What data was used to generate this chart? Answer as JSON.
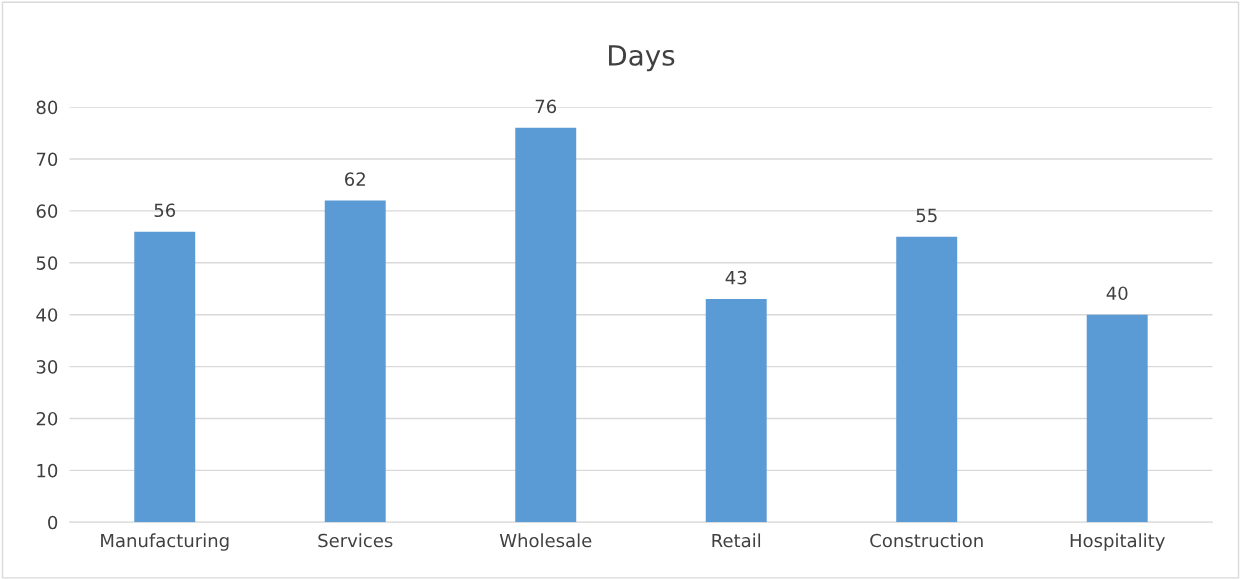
{
  "chart_data": {
    "type": "bar",
    "title": "Days",
    "categories": [
      "Manufacturing",
      "Services",
      "Wholesale",
      "Retail",
      "Construction",
      "Hospitality"
    ],
    "values": [
      56,
      62,
      76,
      43,
      55,
      40
    ],
    "color": "#5b9bd5",
    "ylim": [
      0,
      80
    ],
    "yticks": [
      0,
      10,
      20,
      30,
      40,
      50,
      60,
      70,
      80
    ],
    "grid": "y",
    "data_labels": true,
    "legend": false
  }
}
